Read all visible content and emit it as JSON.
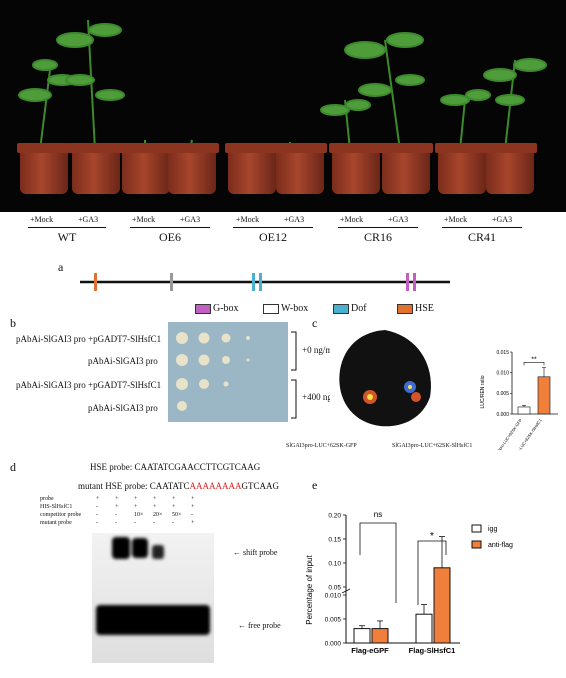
{
  "panel_top": {
    "treatments": [
      "+Mock",
      "+GA3",
      "+Mock",
      "+GA3",
      "+Mock",
      "+GA3",
      "+Mock",
      "+GA3",
      "+Mock",
      "+GA3"
    ],
    "genotypes": [
      "WT",
      "OE6",
      "OE12",
      "CR16",
      "CR41"
    ]
  },
  "panel_a": {
    "label": "a",
    "legend": [
      "G-box",
      "W-box",
      "Dof",
      "HSE"
    ],
    "colors": {
      "g_box": "#c35fc3",
      "w_box": "#ffffff",
      "dof": "#4ab0cf",
      "hse": "#e0712f",
      "tick_gray": "#999999"
    }
  },
  "panel_b": {
    "label": "b",
    "rows": [
      "pAbAi-SlGAI3 pro +pGADT7-SlHsfC1",
      "pAbAi-SlGAI3 pro",
      "pAbAi-SlGAI3 pro +pGADT7-SlHsfC1",
      "pAbAi-SlGAI3 pro"
    ],
    "conditions": [
      "+0 ng/ml Aba",
      "+400 ng/ml Aba"
    ]
  },
  "panel_c": {
    "label": "c",
    "leaf_left": "SlGAI3pro-LUC+62SK-GFP",
    "leaf_right": "SlGAI3pro-LUC+62SK-SlHsfC1",
    "chart_data": {
      "type": "bar",
      "ylabel": "LUC/REN ratio",
      "categories": [
        "SlGAI3pro-LUC+62SK-GFP",
        "SlGAI3pro-LUC+62SK-SlHsfC1"
      ],
      "values": [
        0.0017,
        0.009
      ],
      "ylim": [
        0,
        0.015
      ],
      "yticks": [
        "0.000",
        "0.005",
        "0.010",
        "0.015"
      ],
      "significance": "**"
    }
  },
  "panel_d": {
    "label": "d",
    "hse_probe_label": "HSE probe:",
    "hse_probe_seq": "CAATATCGAACCTTCGTCAAG",
    "mutant_label": "mutant HSE probe:",
    "mutant_prefix": "CAATATC",
    "mutant_mid": "AAAAAAAA",
    "mutant_suffix": "GTCAAG",
    "gel_rows": [
      {
        "name": "probe",
        "cells": [
          "+",
          "+",
          "+",
          "+",
          "+",
          "+"
        ]
      },
      {
        "name": "HIS-SlHsfC1",
        "cells": [
          "-",
          "+",
          "+",
          "+",
          "+",
          "+"
        ]
      },
      {
        "name": "competitor probe",
        "cells": [
          "-",
          "-",
          "10×",
          "20×",
          "50×",
          "-"
        ]
      },
      {
        "name": "mutant probe",
        "cells": [
          "-",
          "-",
          "-",
          "-",
          "-",
          "+"
        ]
      }
    ],
    "shift_label": "shift probe",
    "free_label": "free probe"
  },
  "panel_e": {
    "label": "e",
    "chart_data": {
      "type": "bar",
      "ylabel": "Percentage of input",
      "categories": [
        "Flag-eGPF",
        "Flag-SlHsfC1"
      ],
      "series": [
        {
          "name": "igg",
          "values": [
            0.003,
            0.006
          ]
        },
        {
          "name": "anti-flag",
          "values": [
            0.003,
            0.09
          ]
        }
      ],
      "yticks": [
        "0.000",
        "0.005",
        "0.010",
        "0.05",
        "0.10",
        "0.15",
        "0.20"
      ],
      "significance": [
        "ns",
        "*"
      ],
      "colors": {
        "igg": "#ffffff",
        "anti_flag": "#f07f3b"
      }
    }
  }
}
